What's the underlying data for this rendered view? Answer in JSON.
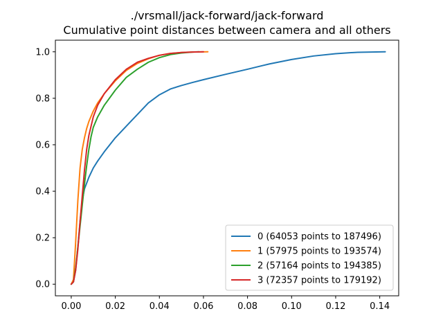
{
  "chart_data": {
    "type": "line",
    "title": "./vrsmall/jack-forward/jack-forward",
    "subtitle": "Cumulative point distances between camera and all others",
    "xlabel": "",
    "ylabel": "",
    "xlim": [
      -0.0072,
      0.1486
    ],
    "ylim": [
      -0.05,
      1.05
    ],
    "xticks": [
      0.0,
      0.02,
      0.04,
      0.06,
      0.08,
      0.1,
      0.12,
      0.14
    ],
    "xtick_labels": [
      "0.00",
      "0.02",
      "0.04",
      "0.06",
      "0.08",
      "0.10",
      "0.12",
      "0.14"
    ],
    "yticks": [
      0.0,
      0.2,
      0.4,
      0.6,
      0.8,
      1.0
    ],
    "ytick_labels": [
      "0.0",
      "0.2",
      "0.4",
      "0.6",
      "0.8",
      "1.0"
    ],
    "grid": false,
    "legend_position": "lower-right",
    "series": [
      {
        "name": "0 (64053 points to 187496)",
        "color": "#1f77b4",
        "x": [
          0.0,
          0.001,
          0.002,
          0.003,
          0.004,
          0.005,
          0.006,
          0.008,
          0.01,
          0.012,
          0.015,
          0.02,
          0.025,
          0.03,
          0.035,
          0.04,
          0.045,
          0.05,
          0.055,
          0.06,
          0.07,
          0.08,
          0.09,
          0.1,
          0.11,
          0.12,
          0.13,
          0.1425
        ],
        "y": [
          0.0,
          0.01,
          0.06,
          0.16,
          0.27,
          0.36,
          0.41,
          0.46,
          0.5,
          0.53,
          0.57,
          0.63,
          0.68,
          0.73,
          0.78,
          0.815,
          0.84,
          0.855,
          0.868,
          0.88,
          0.903,
          0.925,
          0.948,
          0.967,
          0.982,
          0.992,
          0.998,
          1.0
        ]
      },
      {
        "name": "1 (57975 points to 193574)",
        "color": "#ff7f0e",
        "x": [
          0.0,
          0.001,
          0.002,
          0.003,
          0.004,
          0.005,
          0.006,
          0.007,
          0.008,
          0.01,
          0.012,
          0.015,
          0.02,
          0.025,
          0.03,
          0.035,
          0.04,
          0.045,
          0.05,
          0.055,
          0.062
        ],
        "y": [
          0.0,
          0.02,
          0.18,
          0.36,
          0.5,
          0.58,
          0.63,
          0.67,
          0.7,
          0.745,
          0.78,
          0.82,
          0.875,
          0.92,
          0.95,
          0.97,
          0.985,
          0.993,
          0.997,
          0.999,
          1.0
        ]
      },
      {
        "name": "2 (57164 points to 194385)",
        "color": "#2ca02c",
        "x": [
          0.0,
          0.001,
          0.002,
          0.003,
          0.004,
          0.005,
          0.006,
          0.007,
          0.008,
          0.009,
          0.01,
          0.012,
          0.015,
          0.02,
          0.025,
          0.03,
          0.035,
          0.04,
          0.045,
          0.05,
          0.055,
          0.058
        ],
        "y": [
          0.0,
          0.01,
          0.07,
          0.16,
          0.25,
          0.34,
          0.43,
          0.51,
          0.58,
          0.635,
          0.675,
          0.72,
          0.77,
          0.835,
          0.89,
          0.925,
          0.955,
          0.975,
          0.988,
          0.995,
          0.999,
          1.0
        ]
      },
      {
        "name": "3 (72357 points to 179192)",
        "color": "#d62728",
        "x": [
          0.0,
          0.001,
          0.002,
          0.003,
          0.004,
          0.005,
          0.006,
          0.007,
          0.008,
          0.009,
          0.01,
          0.012,
          0.015,
          0.02,
          0.025,
          0.03,
          0.035,
          0.04,
          0.045,
          0.05,
          0.055,
          0.06
        ],
        "y": [
          0.0,
          0.01,
          0.06,
          0.15,
          0.27,
          0.38,
          0.49,
          0.58,
          0.64,
          0.68,
          0.72,
          0.77,
          0.82,
          0.88,
          0.925,
          0.955,
          0.972,
          0.985,
          0.993,
          0.997,
          0.999,
          1.0
        ]
      }
    ]
  }
}
